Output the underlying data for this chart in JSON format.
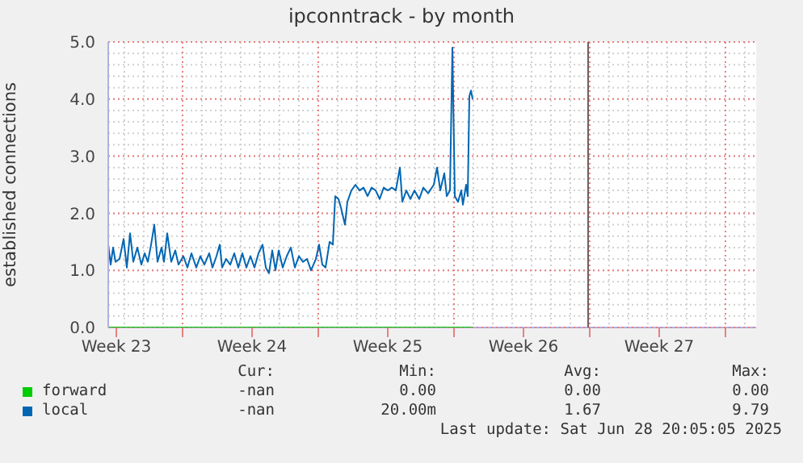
{
  "chart_data": {
    "type": "line",
    "title": "ipconntrack - by month",
    "ylabel": "established connections",
    "xlim": [
      "2025-06-04T02:00",
      "2025-07-07T12:00"
    ],
    "xticks": [
      {
        "value": "2025-06-04T12:00",
        "label": "Week 23"
      },
      {
        "value": "2025-06-07T22:00",
        "label": null
      },
      {
        "value": "2025-06-11T12:00",
        "label": "Week 24"
      },
      {
        "value": "2025-06-14T22:00",
        "label": null
      },
      {
        "value": "2025-06-18T12:00",
        "label": "Week 25"
      },
      {
        "value": "2025-06-21T22:00",
        "label": null
      },
      {
        "value": "2025-06-25T12:00",
        "label": "Week 26"
      },
      {
        "value": "2025-06-28T22:00",
        "label": null
      },
      {
        "value": "2025-07-02T12:00",
        "label": "Week 27"
      },
      {
        "value": "2025-07-05T22:00",
        "label": null
      }
    ],
    "ylim": [
      0,
      5
    ],
    "yticks": [
      {
        "value": 0,
        "label": "0.0"
      },
      {
        "value": 1,
        "label": "1.0"
      },
      {
        "value": 2,
        "label": "2.0"
      },
      {
        "value": 3,
        "label": "3.0"
      },
      {
        "value": 4,
        "label": "4.0"
      },
      {
        "value": 5,
        "label": "5.0"
      }
    ],
    "grid": true,
    "legend": "bottom",
    "line_style": "solid",
    "marker": "none",
    "ref_lines": [
      {
        "axis": "x",
        "value": "2025-06-28T20:00",
        "color": "#706060"
      }
    ],
    "series": [
      {
        "name": "forward",
        "color": "#00cc00",
        "x": [
          "2025-06-04T02:00",
          "2025-06-22T21:00"
        ],
        "values": [
          0,
          0
        ]
      },
      {
        "name": "local",
        "color": "#0066b3",
        "x": [
          "2025-06-04T02:00",
          "2025-06-04T05:00",
          "2025-06-04T08:00",
          "2025-06-04T11:00",
          "2025-06-04T16:00",
          "2025-06-04T21:00",
          "2025-06-05T01:00",
          "2025-06-05T05:00",
          "2025-06-05T09:00",
          "2025-06-05T14:00",
          "2025-06-05T19:00",
          "2025-06-05T23:00",
          "2025-06-06T03:00",
          "2025-06-06T07:00",
          "2025-06-06T11:00",
          "2025-06-06T15:00",
          "2025-06-06T20:00",
          "2025-06-06T23:00",
          "2025-06-07T03:00",
          "2025-06-07T08:00",
          "2025-06-07T13:00",
          "2025-06-07T17:00",
          "2025-06-07T23:00",
          "2025-06-08T04:00",
          "2025-06-08T09:00",
          "2025-06-08T15:00",
          "2025-06-08T20:00",
          "2025-06-09T01:00",
          "2025-06-09T07:00",
          "2025-06-09T11:00",
          "2025-06-09T16:00",
          "2025-06-09T20:00",
          "2025-06-09T23:00",
          "2025-06-10T04:00",
          "2025-06-10T09:00",
          "2025-06-10T14:00",
          "2025-06-10T19:00",
          "2025-06-11T00:00",
          "2025-06-11T05:00",
          "2025-06-11T10:00",
          "2025-06-11T15:00",
          "2025-06-11T20:00",
          "2025-06-12T01:00",
          "2025-06-12T05:00",
          "2025-06-12T09:00",
          "2025-06-12T13:00",
          "2025-06-12T17:00",
          "2025-06-12T21:00",
          "2025-06-13T02:00",
          "2025-06-13T07:00",
          "2025-06-13T12:00",
          "2025-06-13T17:00",
          "2025-06-13T22:00",
          "2025-06-14T03:00",
          "2025-06-14T08:00",
          "2025-06-14T13:00",
          "2025-06-14T19:00",
          "2025-06-14T23:00",
          "2025-06-15T03:00",
          "2025-06-15T07:00",
          "2025-06-15T12:00",
          "2025-06-15T16:00",
          "2025-06-15T19:00",
          "2025-06-15T23:00",
          "2025-06-16T02:00",
          "2025-06-16T07:00",
          "2025-06-16T10:00",
          "2025-06-16T15:00",
          "2025-06-16T20:00",
          "2025-06-17T01:00",
          "2025-06-17T06:00",
          "2025-06-17T11:00",
          "2025-06-17T16:00",
          "2025-06-17T21:00",
          "2025-06-18T02:00",
          "2025-06-18T07:00",
          "2025-06-18T12:00",
          "2025-06-18T17:00",
          "2025-06-18T22:00",
          "2025-06-19T03:00",
          "2025-06-19T06:00",
          "2025-06-19T11:00",
          "2025-06-19T16:00",
          "2025-06-19T21:00",
          "2025-06-20T03:00",
          "2025-06-20T08:00",
          "2025-06-20T14:00",
          "2025-06-20T21:00",
          "2025-06-21T01:00",
          "2025-06-21T05:00",
          "2025-06-21T10:00",
          "2025-06-21T13:00",
          "2025-06-21T17:00",
          "2025-06-21T20:00",
          "2025-06-21T23:00",
          "2025-06-22T03:00",
          "2025-06-22T07:00",
          "2025-06-22T09:00",
          "2025-06-22T13:00",
          "2025-06-22T15:00",
          "2025-06-22T17:00",
          "2025-06-22T19:00",
          "2025-06-22T21:00"
        ],
        "values": [
          1.45,
          1.1,
          1.4,
          1.15,
          1.2,
          1.55,
          1.05,
          1.65,
          1.15,
          1.4,
          1.1,
          1.3,
          1.15,
          1.45,
          1.8,
          1.15,
          1.4,
          1.15,
          1.65,
          1.15,
          1.35,
          1.1,
          1.25,
          1.05,
          1.3,
          1.05,
          1.25,
          1.1,
          1.3,
          1.05,
          1.25,
          1.45,
          1.05,
          1.2,
          1.1,
          1.3,
          1.05,
          1.3,
          1.05,
          1.25,
          1.05,
          1.3,
          1.45,
          1.05,
          0.95,
          1.35,
          1.0,
          1.35,
          1.05,
          1.25,
          1.4,
          1.05,
          1.25,
          1.15,
          1.2,
          1.0,
          1.2,
          1.45,
          1.1,
          1.05,
          1.5,
          1.45,
          2.3,
          2.25,
          2.1,
          1.8,
          2.2,
          2.4,
          2.5,
          2.4,
          2.45,
          2.3,
          2.45,
          2.4,
          2.25,
          2.45,
          2.4,
          2.45,
          2.4,
          2.8,
          2.2,
          2.4,
          2.25,
          2.4,
          2.25,
          2.45,
          2.35,
          2.5,
          2.8,
          2.4,
          2.7,
          2.3,
          2.4,
          4.9,
          2.3,
          2.2,
          2.4,
          2.15,
          2.5,
          2.3,
          4.05,
          4.15,
          4.0
        ]
      }
    ],
    "annotations": [
      "Cur:",
      "Min:",
      "Avg:",
      "Max:",
      "-nan",
      "0.00",
      "0.00",
      "0.00",
      "-nan",
      "20.00m",
      "1.67",
      "9.79",
      "Last update: Sat Jun 28 20:05:05 2025"
    ]
  }
}
